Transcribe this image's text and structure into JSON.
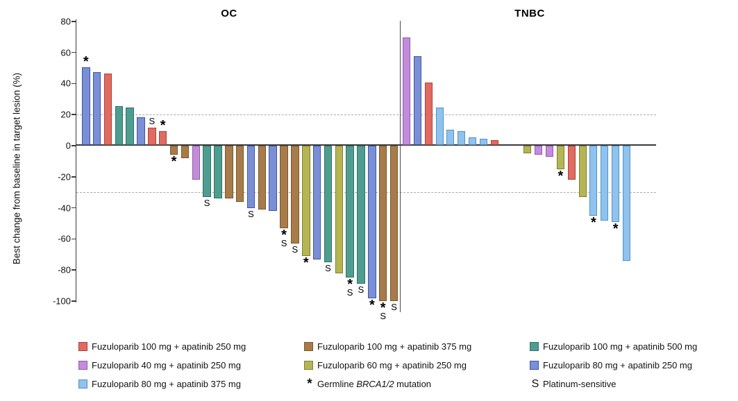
{
  "chart_data": {
    "type": "bar",
    "subtype": "waterfall",
    "ylabel": "Best change from baseline in target lesion (%)",
    "yticks": [
      80,
      60,
      40,
      20,
      0,
      -20,
      -40,
      -60,
      -80,
      -100
    ],
    "ylim": [
      -100,
      80
    ],
    "reference_lines": [
      20,
      -30
    ],
    "grid": false,
    "legend_position": "bottom",
    "groups": {
      "red": {
        "label": "Fuzuloparib 100 mg + apatinib 250 mg",
        "fill": "#E06B60",
        "stroke": "#AE4038"
      },
      "brown": {
        "label": "Fuzuloparib 100 mg + apatinib 375 mg",
        "fill": "#A87B4B",
        "stroke": "#7B5629"
      },
      "teal": {
        "label": "Fuzuloparib 100 mg + apatinib 500 mg",
        "fill": "#4F9D90",
        "stroke": "#2F7265"
      },
      "purple": {
        "label": "Fuzuloparib 40 mg + apatinib 250 mg",
        "fill": "#C38CDB",
        "stroke": "#9159AE"
      },
      "olive": {
        "label": "Fuzuloparib 60 mg + apatinib 250 mg",
        "fill": "#B5B553",
        "stroke": "#7F7F33"
      },
      "blue": {
        "label": "Fuzuloparib 80 mg + apatinib 250 mg",
        "fill": "#7A8FD6",
        "stroke": "#3D55A6"
      },
      "lightblue": {
        "label": "Fuzuloparib 80 mg + apatinib 375 mg",
        "fill": "#8FC2EC",
        "stroke": "#4E92CD"
      }
    },
    "marker_meanings": {
      "*": "Germline BRCA1/2 mutation",
      "S": "Platinum-sensitive"
    },
    "panels": [
      {
        "title": "OC",
        "bars": [
          {
            "value": 50,
            "group": "blue",
            "marker": "*"
          },
          {
            "value": 47,
            "group": "blue"
          },
          {
            "value": 46,
            "group": "red"
          },
          {
            "value": 25,
            "group": "teal"
          },
          {
            "value": 24,
            "group": "teal"
          },
          {
            "value": 18,
            "group": "blue"
          },
          {
            "value": 11,
            "group": "red",
            "marker": "S"
          },
          {
            "value": 9,
            "group": "red",
            "marker": "*"
          },
          {
            "value": -6,
            "group": "brown",
            "marker": "*"
          },
          {
            "value": -8,
            "group": "brown"
          },
          {
            "value": -22,
            "group": "purple"
          },
          {
            "value": -33,
            "group": "teal",
            "marker": "S"
          },
          {
            "value": -34,
            "group": "teal"
          },
          {
            "value": -34,
            "group": "brown"
          },
          {
            "value": -36,
            "group": "brown"
          },
          {
            "value": -40,
            "group": "blue",
            "marker": "S"
          },
          {
            "value": -41,
            "group": "brown"
          },
          {
            "value": -42,
            "group": "blue"
          },
          {
            "value": -53,
            "group": "brown",
            "marker": "*S"
          },
          {
            "value": -63,
            "group": "brown",
            "marker": "S"
          },
          {
            "value": -71,
            "group": "olive",
            "marker": "*"
          },
          {
            "value": -73,
            "group": "blue"
          },
          {
            "value": -75,
            "group": "teal",
            "marker": "S"
          },
          {
            "value": -82,
            "group": "olive"
          },
          {
            "value": -85,
            "group": "teal",
            "marker": "*S"
          },
          {
            "value": -89,
            "group": "teal",
            "marker": "S"
          },
          {
            "value": -98,
            "group": "blue",
            "marker": "*"
          },
          {
            "value": -100,
            "group": "brown",
            "marker": "*S"
          },
          {
            "value": -100,
            "group": "brown",
            "marker": "S"
          }
        ]
      },
      {
        "title": "TNBC",
        "bars": [
          {
            "value": 69,
            "group": "purple"
          },
          {
            "value": 57,
            "group": "blue"
          },
          {
            "value": 40,
            "group": "red"
          },
          {
            "value": 24,
            "group": "lightblue"
          },
          {
            "value": 10,
            "group": "lightblue"
          },
          {
            "value": 9,
            "group": "lightblue"
          },
          {
            "value": 5,
            "group": "lightblue"
          },
          {
            "value": 4,
            "group": "lightblue"
          },
          {
            "value": 3,
            "group": "red"
          },
          {
            "value": 0,
            "group": null,
            "spacer": true
          },
          {
            "value": 0,
            "group": null,
            "spacer": true
          },
          {
            "value": -5,
            "group": "olive"
          },
          {
            "value": -6,
            "group": "purple"
          },
          {
            "value": -7,
            "group": "purple"
          },
          {
            "value": -15,
            "group": "olive",
            "marker": "*"
          },
          {
            "value": -22,
            "group": "red"
          },
          {
            "value": -33,
            "group": "olive"
          },
          {
            "value": -45,
            "group": "lightblue",
            "marker": "*"
          },
          {
            "value": -48,
            "group": "lightblue"
          },
          {
            "value": -49,
            "group": "lightblue",
            "marker": "*"
          },
          {
            "value": -74,
            "group": "lightblue"
          }
        ]
      }
    ],
    "legend": [
      {
        "type": "swatch",
        "group": "red"
      },
      {
        "type": "swatch",
        "group": "brown"
      },
      {
        "type": "swatch",
        "group": "teal"
      },
      {
        "type": "swatch",
        "group": "purple"
      },
      {
        "type": "swatch",
        "group": "olive"
      },
      {
        "type": "swatch",
        "group": "blue"
      },
      {
        "type": "swatch",
        "group": "lightblue"
      },
      {
        "type": "symbol",
        "symbol": "*",
        "parts": [
          {
            "t": "Germline "
          },
          {
            "t": "BRCA1/2",
            "i": true
          },
          {
            "t": " mutation"
          }
        ]
      },
      {
        "type": "symbol",
        "symbol": "S",
        "parts": [
          {
            "t": "Platinum-sensitive"
          }
        ]
      }
    ]
  }
}
